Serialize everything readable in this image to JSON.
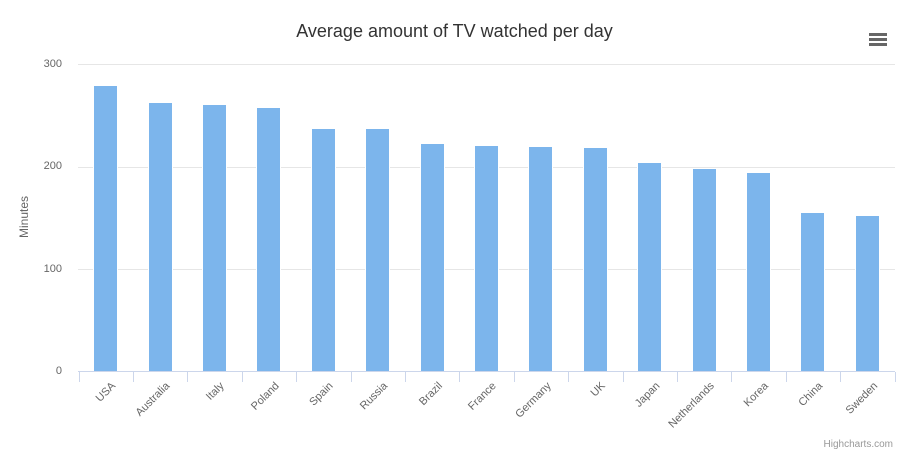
{
  "chart": {
    "title": "Average amount of TV watched per day",
    "y_axis": {
      "title": "Minutes"
    },
    "credits": "Highcharts.com",
    "menu_icon": "hamburger-icon",
    "colors": {
      "bar_fill": "#7cb5ec",
      "bar_border": "#ffffff",
      "gridline": "#e6e6e6",
      "axis_line": "#ccd6eb",
      "axis_label": "#666666",
      "title_text": "#333333",
      "credits_text": "#999999",
      "menu_icon": "#666666"
    }
  },
  "chart_data": {
    "type": "bar",
    "orientation": "vertical",
    "title": "Average amount of TV watched per day",
    "xlabel": "",
    "ylabel": "Minutes",
    "ylim": [
      0,
      300
    ],
    "yticks": [
      0,
      100,
      200,
      300
    ],
    "grid": true,
    "legend": false,
    "categories": [
      "USA",
      "Australia",
      "Italy",
      "Poland",
      "Spain",
      "Russia",
      "Brazil",
      "France",
      "Germany",
      "UK",
      "Japan",
      "Netherlands",
      "Korea",
      "China",
      "Sweden"
    ],
    "values": [
      280,
      263,
      261,
      258,
      238,
      238,
      223,
      221,
      220,
      219,
      204,
      199,
      195,
      156,
      153
    ]
  }
}
